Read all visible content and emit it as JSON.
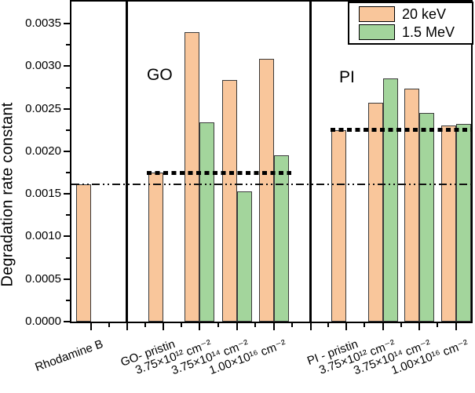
{
  "chart_data": {
    "type": "bar",
    "title": "",
    "ylabel": "Degradation rate constant",
    "xlabel": "",
    "ylim": [
      0,
      0.00376
    ],
    "grid": false,
    "ytick_values": [
      0.0,
      0.0005,
      0.001,
      0.0015,
      0.002,
      0.0025,
      0.003,
      0.0035
    ],
    "ytick_labels": [
      "0.0000",
      "0.0005",
      "0.0010",
      "0.0015",
      "0.0020",
      "0.0025",
      "0.0030",
      "0.0035"
    ],
    "minor_ytick_interval": 0.00025,
    "categories": [
      "Rhodamine B",
      "GO- pristin",
      "3.75×10¹² cm⁻²",
      "3.75×10¹⁴ cm⁻²",
      "1.00×10¹⁶ cm⁻²",
      "PI - pristin",
      "3.75×10¹² cm⁻²",
      "3.75×10¹⁴ cm⁻²",
      "1.00×10¹⁶ cm⁻²"
    ],
    "series": [
      {
        "name": "20 keV",
        "color": "#F9C69B",
        "values": [
          0.00161,
          0.00175,
          0.0034,
          0.00284,
          0.00309,
          0.00225,
          0.00257,
          0.00274,
          0.0023
        ]
      },
      {
        "name": "1.5 MeV",
        "color": "#A3D59C",
        "values": [
          null,
          null,
          0.00234,
          0.00153,
          0.00195,
          null,
          0.00286,
          0.00245,
          0.00232
        ]
      }
    ],
    "panels": [
      {
        "label": "",
        "categories": [
          "Rhodamine B"
        ]
      },
      {
        "label": "GO",
        "categories": [
          "GO- pristin",
          "3.75×10¹² cm⁻²",
          "3.75×10¹⁴ cm⁻²",
          "1.00×10¹⁶ cm⁻²"
        ]
      },
      {
        "label": "PI",
        "categories": [
          "PI - pristin",
          "3.75×10¹² cm⁻²",
          "3.75×10¹⁴ cm⁻²",
          "1.00×10¹⁶ cm⁻²"
        ]
      }
    ],
    "reference_lines": [
      {
        "style": "dash-dot-thin",
        "value": 0.00161,
        "span": "all-panels"
      },
      {
        "style": "dotted-bold",
        "value": 0.00175,
        "span": "GO-panel"
      },
      {
        "style": "dotted-bold",
        "value": 0.00225,
        "span": "PI-panel"
      }
    ],
    "legend": {
      "position": "top-right",
      "entries": [
        {
          "label": "20 keV",
          "color": "#F9C69B"
        },
        {
          "label": "1.5 MeV",
          "color": "#A3D59C"
        }
      ]
    },
    "colors": {
      "bar_border": "#3b3b3b",
      "axis": "#000000",
      "background": "#ffffff"
    }
  }
}
